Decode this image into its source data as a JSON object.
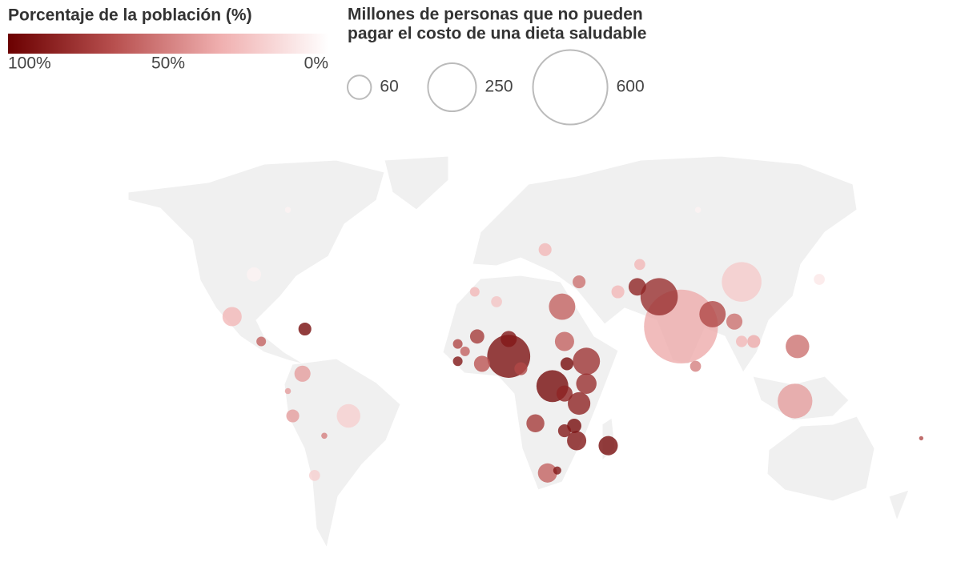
{
  "color_legend": {
    "title": "Porcentaje de la población (%)",
    "ticks": [
      {
        "value": 100,
        "label": "100%"
      },
      {
        "value": 50,
        "label": "50%"
      },
      {
        "value": 0,
        "label": "0%"
      }
    ],
    "colors": [
      "#6b0000",
      "#b8504f",
      "#f0b0b0",
      "#ffffff"
    ]
  },
  "size_legend": {
    "title_lines": [
      "Millones de personas que no pueden",
      "pagar el costo de una dieta saludable"
    ],
    "values": [
      60,
      250,
      600
    ],
    "stroke": "#bbbbbb"
  },
  "map": {
    "land_color": "#f0f0f0",
    "opacity": 0.8,
    "points": [
      {
        "lon": 79,
        "lat": 21,
        "value": 590,
        "pct": 35
      },
      {
        "lon": 70,
        "lat": 33,
        "value": 150,
        "pct": 80
      },
      {
        "lon": 92,
        "lat": 26,
        "value": 75,
        "pct": 70
      },
      {
        "lon": 104,
        "lat": 39,
        "value": 170,
        "pct": 22
      },
      {
        "lon": 126,
        "lat": -9,
        "value": 130,
        "pct": 40
      },
      {
        "lon": 127,
        "lat": 13,
        "value": 60,
        "pct": 55
      },
      {
        "lon": 8,
        "lat": 9,
        "value": 200,
        "pct": 92
      },
      {
        "lon": 40,
        "lat": 7,
        "value": 80,
        "pct": 78
      },
      {
        "lon": 26,
        "lat": -3,
        "value": 110,
        "pct": 95
      },
      {
        "lon": 37,
        "lat": -10,
        "value": 55,
        "pct": 85
      },
      {
        "lon": 40,
        "lat": -2,
        "value": 45,
        "pct": 80
      },
      {
        "lon": 30,
        "lat": 29,
        "value": 75,
        "pct": 60
      },
      {
        "lon": 31,
        "lat": 15,
        "value": 40,
        "pct": 60
      },
      {
        "lon": -58,
        "lat": -15,
        "value": 60,
        "pct": 20
      },
      {
        "lon": -106,
        "lat": 25,
        "value": 40,
        "pct": 30
      },
      {
        "lon": -97,
        "lat": 42,
        "value": 22,
        "pct": 5
      },
      {
        "lon": 49,
        "lat": -27,
        "value": 40,
        "pct": 95
      },
      {
        "lon": 36,
        "lat": -25,
        "value": 40,
        "pct": 90
      },
      {
        "lon": 19,
        "lat": -18,
        "value": 35,
        "pct": 75
      },
      {
        "lon": 24,
        "lat": -38,
        "value": 40,
        "pct": 60
      },
      {
        "lon": 101,
        "lat": 23,
        "value": 28,
        "pct": 55
      },
      {
        "lon": 53,
        "lat": 35,
        "value": 18,
        "pct": 30
      },
      {
        "lon": 61,
        "lat": 37,
        "value": 33,
        "pct": 85
      },
      {
        "lon": 31,
        "lat": -6,
        "value": 28,
        "pct": 85
      },
      {
        "lon": -77,
        "lat": 2,
        "value": 28,
        "pct": 40
      },
      {
        "lon": -81,
        "lat": -15,
        "value": 18,
        "pct": 40
      },
      {
        "lon": 8,
        "lat": 16,
        "value": 28,
        "pct": 90
      },
      {
        "lon": -3,
        "lat": 6,
        "value": 28,
        "pct": 65
      },
      {
        "lon": 13,
        "lat": 4,
        "value": 18,
        "pct": 70
      },
      {
        "lon": 35,
        "lat": -19,
        "value": 22,
        "pct": 95
      },
      {
        "lon": 31,
        "lat": -21,
        "value": 18,
        "pct": 90
      },
      {
        "lon": 109,
        "lat": 15,
        "value": 18,
        "pct": 35
      },
      {
        "lon": 104,
        "lat": 15,
        "value": 14,
        "pct": 30
      },
      {
        "lon": -76,
        "lat": 20,
        "value": 18,
        "pct": 95
      },
      {
        "lon": -94,
        "lat": 15,
        "value": 10,
        "pct": 60
      },
      {
        "lon": 3,
        "lat": 31,
        "value": 13,
        "pct": 25
      },
      {
        "lon": -6,
        "lat": 35,
        "value": 10,
        "pct": 30
      },
      {
        "lon": 37,
        "lat": 39,
        "value": 18,
        "pct": 55
      },
      {
        "lon": -5,
        "lat": 17,
        "value": 22,
        "pct": 75
      },
      {
        "lon": -13,
        "lat": 14,
        "value": 10,
        "pct": 70
      },
      {
        "lon": 136,
        "lat": 40,
        "value": 13,
        "pct": 10
      },
      {
        "lon": 86,
        "lat": 68,
        "value": 4,
        "pct": 5
      },
      {
        "lon": -83,
        "lat": 68,
        "value": 4,
        "pct": 5
      },
      {
        "lon": -72,
        "lat": -39,
        "value": 13,
        "pct": 20
      },
      {
        "lon": -68,
        "lat": -23,
        "value": 4,
        "pct": 50
      },
      {
        "lon": 62,
        "lat": 46,
        "value": 13,
        "pct": 30
      },
      {
        "lon": 85,
        "lat": 5,
        "value": 13,
        "pct": 50
      },
      {
        "lon": 28,
        "lat": -37,
        "value": 7,
        "pct": 90
      },
      {
        "lon": -10,
        "lat": 11,
        "value": 10,
        "pct": 60
      },
      {
        "lon": -13,
        "lat": 7,
        "value": 10,
        "pct": 90
      },
      {
        "lon": 32,
        "lat": 6,
        "value": 18,
        "pct": 95
      },
      {
        "lon": 23,
        "lat": 52,
        "value": 18,
        "pct": 30
      },
      {
        "lon": -83,
        "lat": -5,
        "value": 4,
        "pct": 40
      },
      {
        "lon": 178,
        "lat": -24,
        "value": 2,
        "pct": 70
      }
    ]
  }
}
